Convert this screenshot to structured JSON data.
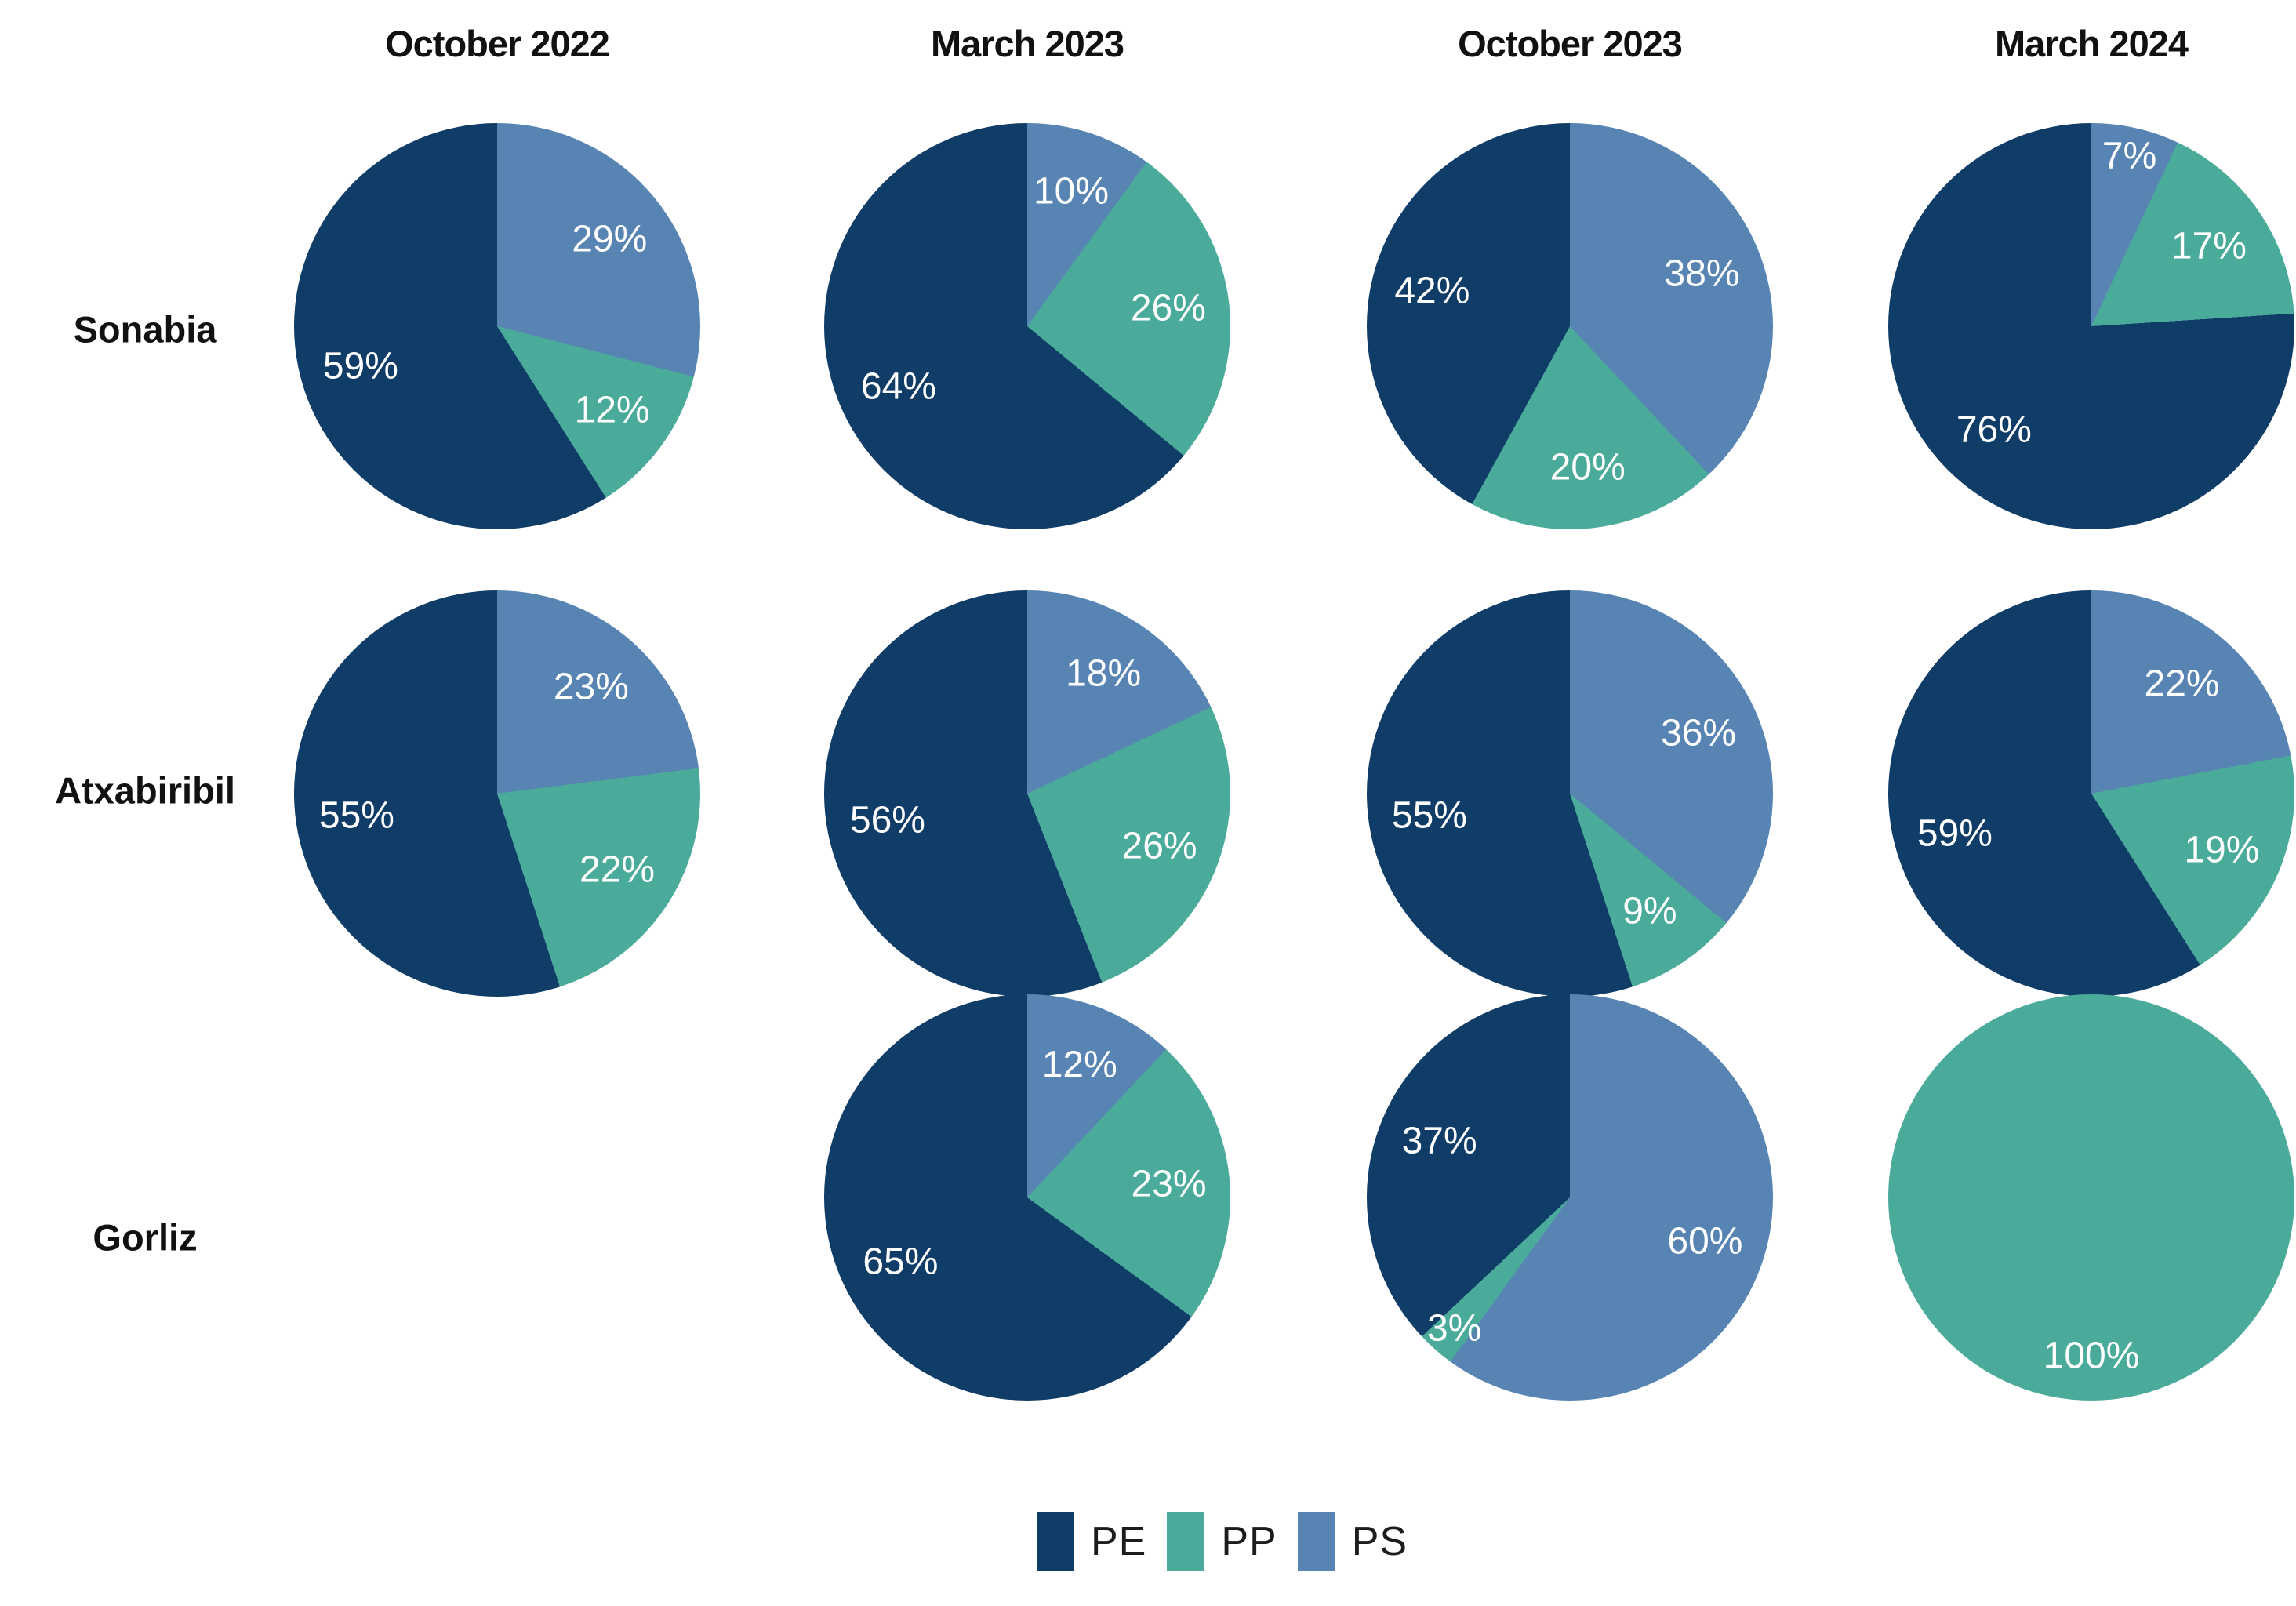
{
  "figure": {
    "columns": [
      "October 2022",
      "March 2023",
      "October 2023",
      "March 2024"
    ],
    "rows": [
      "Sonabia",
      "Atxabiribil",
      "Gorliz"
    ],
    "legend": [
      {
        "label": "PE",
        "color": "#103C68"
      },
      {
        "label": "PP",
        "color": "#4BAB9B"
      },
      {
        "label": "PS",
        "color": "#5784B3"
      }
    ]
  },
  "chart_data": {
    "type": "pie",
    "unit": "%",
    "layout": {
      "grid_rows": 3,
      "grid_cols": 4,
      "legend_position": "bottom",
      "start_angle": "12-o-clock",
      "slice_order_clockwise_from_top": [
        "PS",
        "PP",
        "PE"
      ]
    },
    "pies": [
      {
        "row": "Sonabia",
        "column": "October 2022",
        "values": {
          "PE": 59,
          "PP": 12,
          "PS": 29
        }
      },
      {
        "row": "Sonabia",
        "column": "March 2023",
        "values": {
          "PE": 64,
          "PP": 26,
          "PS": 10
        }
      },
      {
        "row": "Sonabia",
        "column": "October 2023",
        "values": {
          "PE": 42,
          "PP": 20,
          "PS": 38
        }
      },
      {
        "row": "Sonabia",
        "column": "March 2024",
        "values": {
          "PE": 76,
          "PP": 17,
          "PS": 7
        }
      },
      {
        "row": "Atxabiribil",
        "column": "October 2022",
        "values": {
          "PE": 55,
          "PP": 22,
          "PS": 23
        }
      },
      {
        "row": "Atxabiribil",
        "column": "March 2023",
        "values": {
          "PE": 56,
          "PP": 26,
          "PS": 18
        }
      },
      {
        "row": "Atxabiribil",
        "column": "October 2023",
        "values": {
          "PE": 55,
          "PP": 9,
          "PS": 36
        }
      },
      {
        "row": "Atxabiribil",
        "column": "March 2024",
        "values": {
          "PE": 59,
          "PP": 19,
          "PS": 22
        }
      },
      {
        "row": "Gorliz",
        "column": "March 2023",
        "values": {
          "PE": 65,
          "PP": 23,
          "PS": 12
        }
      },
      {
        "row": "Gorliz",
        "column": "October 2023",
        "values": {
          "PE": 37,
          "PP": 3,
          "PS": 60
        }
      },
      {
        "row": "Gorliz",
        "column": "March 2024",
        "values": {
          "PE": 0,
          "PP": 100,
          "PS": 0
        }
      }
    ]
  }
}
